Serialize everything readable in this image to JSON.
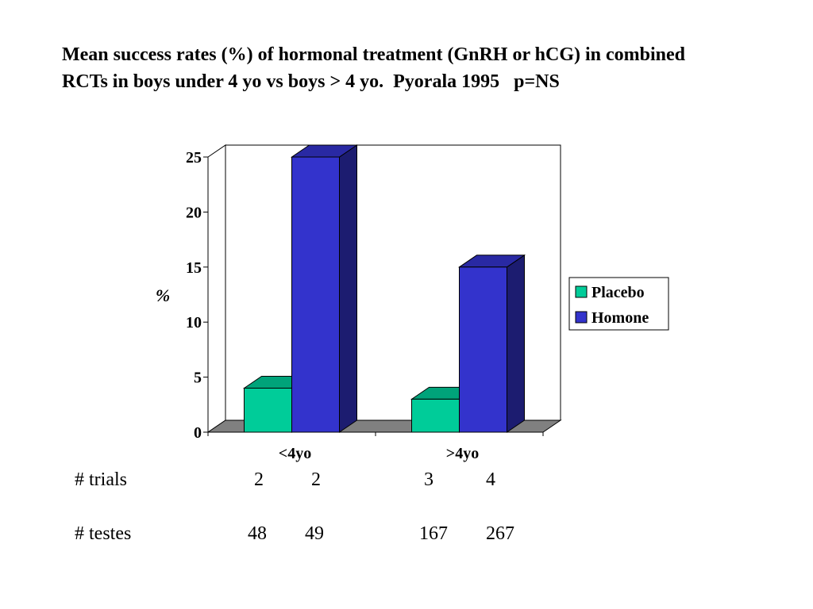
{
  "title": {
    "line1": "Mean success rates (%) of hormonal treatment (GnRH or hCG) in combined",
    "line2": "RCTs in boys under 4 yo vs boys > 4 yo.  Pyorala 1995   p=NS"
  },
  "chart_data": {
    "type": "bar",
    "title": "",
    "xlabel": "",
    "ylabel": "%",
    "categories": [
      "<4yo",
      ">4yo"
    ],
    "series": [
      {
        "name": "Placebo",
        "values": [
          4,
          3
        ],
        "color": "#00CC99"
      },
      {
        "name": "Homone",
        "values": [
          25,
          15
        ],
        "color": "#3333CC"
      }
    ],
    "ylim": [
      0,
      25
    ],
    "yticks": [
      "0",
      "5",
      "10",
      "15",
      "20",
      "25"
    ],
    "grid": false,
    "three_d": true,
    "floor_color": "#808080",
    "legend_position": "right"
  },
  "table": {
    "rows": [
      {
        "label": "# trials",
        "values": [
          "2",
          "2",
          "3",
          "4"
        ]
      },
      {
        "label": "# testes",
        "values": [
          "48",
          "49",
          "167",
          "267"
        ]
      }
    ]
  }
}
